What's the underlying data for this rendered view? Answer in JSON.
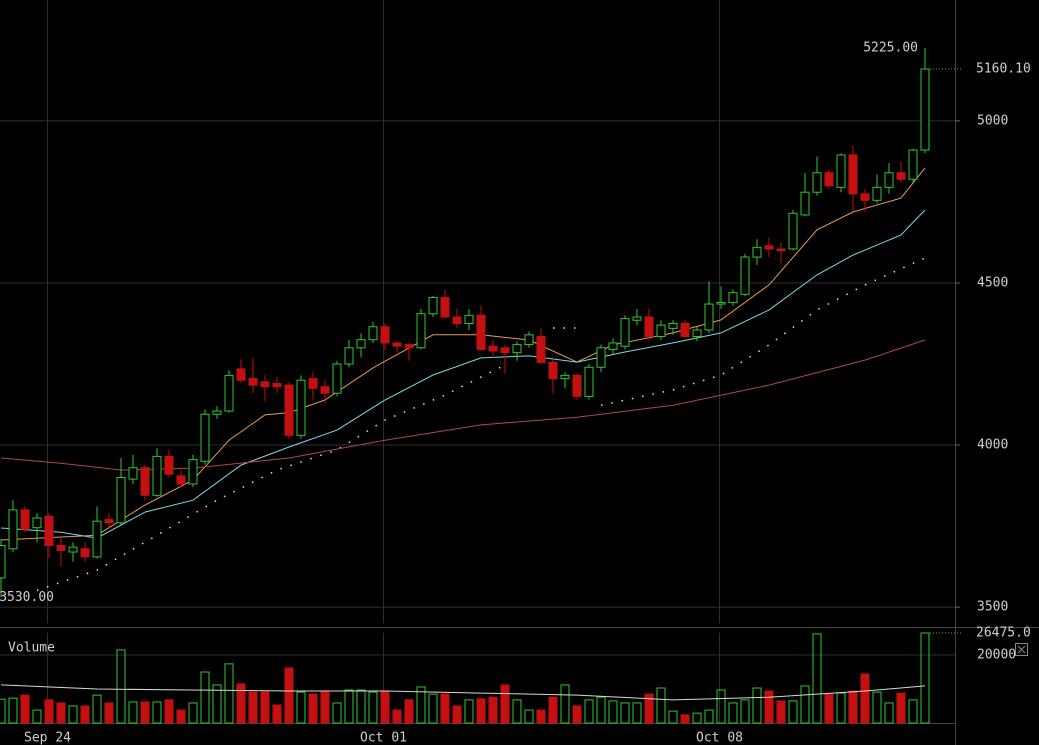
{
  "chart_data": {
    "type": "candlestick",
    "categories": [
      null,
      null,
      null,
      null,
      "Sep 24",
      null,
      null,
      null,
      null,
      null,
      null,
      null,
      null,
      null,
      null,
      null,
      null,
      null,
      null,
      null,
      null,
      null,
      null,
      null,
      null,
      null,
      null,
      null,
      null,
      null,
      null,
      null,
      "Oct 01",
      null,
      null,
      null,
      null,
      null,
      null,
      null,
      null,
      null,
      null,
      null,
      null,
      null,
      null,
      null,
      null,
      null,
      null,
      null,
      null,
      null,
      null,
      null,
      null,
      null,
      null,
      null,
      "Oct 08",
      null,
      null,
      null,
      null,
      null,
      null,
      null,
      null,
      null,
      null,
      null,
      null,
      null,
      null,
      null,
      null,
      null
    ],
    "open": [
      3590,
      3680,
      3800,
      3745,
      3780,
      3690,
      3670,
      3680,
      3655,
      3770,
      3760,
      3895,
      3930,
      3845,
      3965,
      3905,
      3880,
      3950,
      4095,
      4105,
      4235,
      4205,
      4195,
      4190,
      4185,
      4030,
      4205,
      4180,
      4160,
      4250,
      4300,
      4325,
      4365,
      4315,
      4310,
      4300,
      4405,
      4455,
      4395,
      4375,
      4400,
      4305,
      4300,
      4285,
      4310,
      4335,
      4255,
      4205,
      4215,
      4150,
      4240,
      4295,
      4305,
      4385,
      4395,
      4335,
      4360,
      4375,
      4335,
      4355,
      4435,
      4440,
      4465,
      4580,
      4615,
      4605,
      4605,
      4710,
      4780,
      4840,
      4795,
      4895,
      4775,
      4755,
      4795,
      4840,
      4820,
      4910
    ],
    "high": [
      3710,
      3830,
      3810,
      3790,
      3790,
      3720,
      3700,
      3700,
      3810,
      3790,
      3960,
      3970,
      3940,
      3990,
      3985,
      3920,
      3970,
      4110,
      4120,
      4230,
      4265,
      4270,
      4215,
      4210,
      4195,
      4215,
      4225,
      4200,
      4260,
      4325,
      4345,
      4380,
      4375,
      4320,
      4315,
      4420,
      4460,
      4480,
      4420,
      4420,
      4430,
      4325,
      4310,
      4320,
      4350,
      4360,
      4265,
      4225,
      4220,
      4250,
      4310,
      4330,
      4400,
      4420,
      4420,
      4385,
      4385,
      4385,
      4365,
      4505,
      4490,
      4480,
      4590,
      4635,
      4640,
      4625,
      4725,
      4840,
      4890,
      4850,
      4900,
      4925,
      4790,
      4835,
      4870,
      4875,
      4915,
      5225
    ],
    "low": [
      3530,
      3670,
      3730,
      3700,
      3650,
      3625,
      3640,
      3640,
      3650,
      3745,
      3755,
      3880,
      3830,
      3840,
      3900,
      3870,
      3870,
      3940,
      4080,
      4100,
      4190,
      4160,
      4135,
      4160,
      4020,
      4020,
      4140,
      4130,
      4150,
      4240,
      4270,
      4315,
      4290,
      4285,
      4260,
      4295,
      4395,
      4390,
      4360,
      4355,
      4290,
      4270,
      4220,
      4260,
      4300,
      4250,
      4160,
      4175,
      4140,
      4140,
      4225,
      4280,
      4295,
      4370,
      4325,
      4325,
      4340,
      4330,
      4320,
      4345,
      4420,
      4430,
      4460,
      4555,
      4580,
      4560,
      4600,
      4705,
      4770,
      4790,
      4780,
      4720,
      4720,
      4745,
      4775,
      4810,
      4810,
      4900
    ],
    "close": [
      3690,
      3800,
      3740,
      3775,
      3690,
      3675,
      3685,
      3655,
      3765,
      3760,
      3900,
      3930,
      3845,
      3965,
      3910,
      3880,
      3955,
      4095,
      4105,
      4215,
      4200,
      4185,
      4180,
      4180,
      4030,
      4200,
      4175,
      4160,
      4250,
      4300,
      4325,
      4365,
      4315,
      4305,
      4300,
      4405,
      4455,
      4395,
      4375,
      4400,
      4295,
      4290,
      4285,
      4310,
      4340,
      4255,
      4205,
      4215,
      4150,
      4240,
      4300,
      4315,
      4390,
      4395,
      4335,
      4370,
      4375,
      4335,
      4355,
      4435,
      4440,
      4470,
      4580,
      4610,
      4605,
      4600,
      4715,
      4780,
      4840,
      4800,
      4895,
      4775,
      4755,
      4795,
      4840,
      4820,
      4910,
      5160.1
    ],
    "volume": [
      7000,
      7300,
      8200,
      3800,
      6800,
      5900,
      5000,
      5000,
      8200,
      5900,
      21500,
      6200,
      6200,
      6200,
      6800,
      3800,
      5900,
      15000,
      11200,
      17400,
      11500,
      9100,
      9100,
      5300,
      16200,
      9100,
      8500,
      9100,
      5900,
      9700,
      9700,
      9100,
      9400,
      3800,
      6800,
      10600,
      8500,
      8500,
      5000,
      6800,
      7100,
      7600,
      11200,
      6800,
      3800,
      3800,
      7600,
      11200,
      5000,
      6800,
      7600,
      6500,
      5900,
      5900,
      8500,
      10300,
      3500,
      2400,
      2900,
      3800,
      9700,
      5900,
      6800,
      10300,
      9400,
      6500,
      6500,
      10900,
      26200,
      8500,
      8800,
      9400,
      14400,
      9100,
      5900,
      8800,
      6800,
      26475
    ],
    "up_color": "#2fc82f",
    "down_color": "#c41010",
    "ylim": [
      3451,
      5373
    ],
    "yticks": [
      3500,
      4000,
      4500,
      5000
    ],
    "volume_label": "Volume",
    "volume_ylim": [
      0,
      26475
    ],
    "volume_yticks": [
      20000
    ],
    "grid": true,
    "high_label": {
      "value": 5225,
      "label": "5225.00"
    },
    "low_label": {
      "value": 3530,
      "label": "3530.00"
    },
    "last_price": {
      "value": 5160.1,
      "label": "5160.10"
    },
    "last_volume": {
      "value": 26475,
      "label": "26475.0"
    },
    "overlays": [
      {
        "color": "#e89a5a",
        "style": "solid",
        "x": [
          0,
          8,
          12,
          16,
          19,
          22,
          24,
          27,
          31,
          36,
          40,
          44,
          48,
          51,
          56,
          60,
          64,
          68,
          71,
          75,
          77
        ],
        "values": [
          3707,
          3722,
          3815,
          3892,
          4015,
          4093,
          4100,
          4139,
          4238,
          4340,
          4340,
          4324,
          4256,
          4309,
          4346,
          4386,
          4494,
          4664,
          4719,
          4762,
          4855
        ]
      },
      {
        "color": "#7fd8e8",
        "style": "solid",
        "x": [
          0,
          5,
          8,
          12,
          16,
          20,
          24,
          28,
          32,
          36,
          40,
          44,
          48,
          52,
          56,
          60,
          64,
          68,
          71,
          75,
          77
        ],
        "values": [
          3744,
          3731,
          3713,
          3793,
          3830,
          3938,
          3994,
          4046,
          4139,
          4216,
          4269,
          4275,
          4256,
          4287,
          4315,
          4346,
          4417,
          4525,
          4586,
          4648,
          4725
        ]
      },
      {
        "color": "#e0e0e0",
        "style": "dotted",
        "x": [
          3,
          8,
          13,
          18,
          23,
          28,
          32,
          37,
          42,
          44,
          46,
          48,
          49,
          50,
          56,
          60,
          64,
          68,
          72,
          77
        ],
        "values": [
          3552,
          3614,
          3722,
          3830,
          3923,
          3985,
          4077,
          4154,
          4247,
          null,
          4361,
          4361,
          null,
          4123,
          4170,
          4216,
          4309,
          4417,
          4494,
          4577
        ]
      },
      {
        "color": "#b04848",
        "style": "solid",
        "x": [
          0,
          5,
          10,
          16,
          24,
          32,
          40,
          48,
          56,
          64,
          72,
          77
        ],
        "values": [
          3960,
          3944,
          3923,
          3929,
          3960,
          4015,
          4062,
          4086,
          4123,
          4185,
          4262,
          4324
        ]
      }
    ],
    "volume_overlay": {
      "color": "#d8d8d8",
      "x": [
        0,
        8,
        16,
        24,
        32,
        40,
        48,
        56,
        64,
        72,
        77
      ],
      "values": [
        11200,
        10000,
        9700,
        9400,
        9400,
        8800,
        8200,
        6800,
        7600,
        9400,
        10900
      ]
    }
  }
}
